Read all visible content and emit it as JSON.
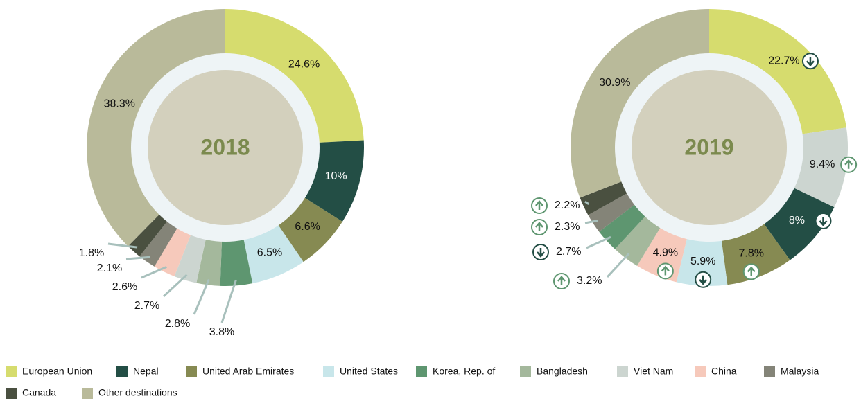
{
  "legend": {
    "names": [
      "European Union",
      "Nepal",
      "United Arab Emirates",
      "United States",
      "Korea, Rep. of",
      "Bangladesh",
      "Viet Nam",
      "China",
      "Malaysia",
      "Canada",
      "Other destinations"
    ],
    "colors": [
      "#d6dc6e",
      "#234e45",
      "#868a52",
      "#c8e6ea",
      "#5e9670",
      "#a4b89c",
      "#ccd5d0",
      "#f6c9bb",
      "#848478",
      "#4a5040",
      "#b9ba9a"
    ]
  },
  "chart_data": [
    {
      "type": "pie",
      "title": "2018",
      "categories": [
        "European Union",
        "Nepal",
        "United Arab Emirates",
        "United States",
        "Korea, Rep. of",
        "Bangladesh",
        "Viet Nam",
        "China",
        "Malaysia",
        "Canada",
        "Other destinations"
      ],
      "values": [
        24.6,
        10,
        6.6,
        6.5,
        3.8,
        2.8,
        2.7,
        2.6,
        2.1,
        1.8,
        38.3
      ],
      "value_labels": [
        "24.6%",
        "10%",
        "6.6%",
        "6.5%",
        "3.8%",
        "2.8%",
        "2.7%",
        "2.6%",
        "2.1%",
        "1.8%",
        "38.3%"
      ]
    },
    {
      "type": "pie",
      "title": "2019",
      "categories": [
        "European Union",
        "Viet Nam",
        "Nepal",
        "United Arab Emirates",
        "United States",
        "China",
        "Bangladesh",
        "Korea, Rep. of",
        "Malaysia",
        "Canada",
        "Other destinations"
      ],
      "values": [
        22.7,
        9.4,
        8,
        7.8,
        5.9,
        4.9,
        3.2,
        2.7,
        2.3,
        2.2,
        30.9
      ],
      "value_labels": [
        "22.7%",
        "9.4%",
        "8%",
        "7.8%",
        "5.9%",
        "4.9%",
        "3.2%",
        "2.7%",
        "2.3%",
        "2.2%",
        "30.9%"
      ],
      "trends": [
        "down",
        "up",
        "down",
        "up",
        "down",
        "up",
        "up",
        "down",
        "up",
        "up",
        null
      ]
    }
  ]
}
